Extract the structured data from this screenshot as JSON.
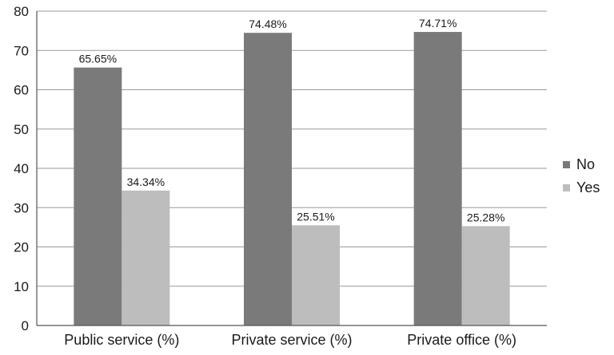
{
  "chart_data": {
    "type": "bar",
    "title": "",
    "xlabel": "",
    "ylabel": "",
    "categories": [
      "Public service (%)",
      "Private service (%)",
      "Private office (%)"
    ],
    "series": [
      {
        "name": "No",
        "color": "#7a7a7a",
        "values": [
          65.65,
          74.48,
          74.71
        ],
        "labels": [
          "65.65%",
          "74.48%",
          "74.71%"
        ]
      },
      {
        "name": "Yes",
        "color": "#bdbdbd",
        "values": [
          34.34,
          25.51,
          25.28
        ],
        "labels": [
          "34.34%",
          "25.51%",
          "25.28%"
        ]
      }
    ],
    "ylim": [
      0,
      80
    ],
    "yticks": [
      0,
      10,
      20,
      30,
      40,
      50,
      60,
      70,
      80
    ],
    "grid": true,
    "legend_position": "right"
  }
}
